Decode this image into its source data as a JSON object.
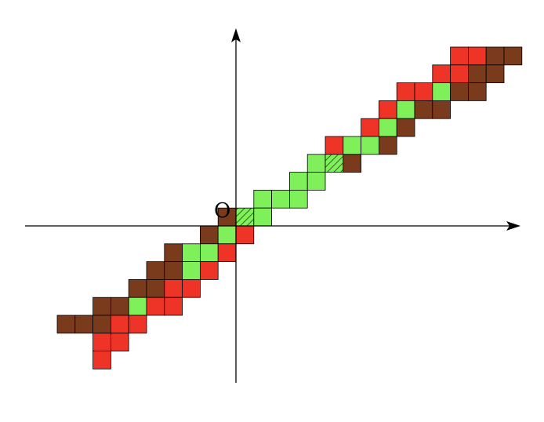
{
  "diagram": {
    "origin_label": "O",
    "colors": {
      "red": "#ee3327",
      "green": "#7ff05a",
      "brown": "#7a3a1c",
      "hatch_fill": "#7ff05a",
      "hatch_stroke": "#000000"
    },
    "cells": [
      {
        "col": 12,
        "row": 9,
        "color": "red"
      },
      {
        "col": 13,
        "row": 9,
        "color": "red"
      },
      {
        "col": 14,
        "row": 9,
        "color": "brown"
      },
      {
        "col": 15,
        "row": 9,
        "color": "brown"
      },
      {
        "col": 11,
        "row": 8,
        "color": "red"
      },
      {
        "col": 12,
        "row": 8,
        "color": "red"
      },
      {
        "col": 13,
        "row": 8,
        "color": "brown"
      },
      {
        "col": 14,
        "row": 8,
        "color": "brown"
      },
      {
        "col": 9,
        "row": 7,
        "color": "red"
      },
      {
        "col": 10,
        "row": 7,
        "color": "red"
      },
      {
        "col": 11,
        "row": 7,
        "color": "green"
      },
      {
        "col": 12,
        "row": 7,
        "color": "brown"
      },
      {
        "col": 13,
        "row": 7,
        "color": "brown"
      },
      {
        "col": 8,
        "row": 6,
        "color": "red"
      },
      {
        "col": 9,
        "row": 6,
        "color": "green"
      },
      {
        "col": 10,
        "row": 6,
        "color": "brown"
      },
      {
        "col": 11,
        "row": 6,
        "color": "brown"
      },
      {
        "col": 7,
        "row": 5,
        "color": "red"
      },
      {
        "col": 8,
        "row": 5,
        "color": "green"
      },
      {
        "col": 9,
        "row": 5,
        "color": "brown"
      },
      {
        "col": 5,
        "row": 4,
        "color": "red"
      },
      {
        "col": 6,
        "row": 4,
        "color": "green"
      },
      {
        "col": 7,
        "row": 4,
        "color": "green"
      },
      {
        "col": 8,
        "row": 4,
        "color": "brown"
      },
      {
        "col": 4,
        "row": 3,
        "color": "green"
      },
      {
        "col": 5,
        "row": 3,
        "color": "hatch"
      },
      {
        "col": 6,
        "row": 3,
        "color": "brown"
      },
      {
        "col": 3,
        "row": 2,
        "color": "green"
      },
      {
        "col": 4,
        "row": 2,
        "color": "green"
      },
      {
        "col": 1,
        "row": 1,
        "color": "green"
      },
      {
        "col": 2,
        "row": 1,
        "color": "green"
      },
      {
        "col": 3,
        "row": 1,
        "color": "green"
      },
      {
        "col": -1,
        "row": 0,
        "color": "brown"
      },
      {
        "col": 0,
        "row": 0,
        "color": "hatch"
      },
      {
        "col": 1,
        "row": 0,
        "color": "green"
      },
      {
        "col": -2,
        "row": -1,
        "color": "brown"
      },
      {
        "col": -1,
        "row": -1,
        "color": "green"
      },
      {
        "col": 0,
        "row": -1,
        "color": "red"
      },
      {
        "col": -4,
        "row": -2,
        "color": "brown"
      },
      {
        "col": -3,
        "row": -2,
        "color": "green"
      },
      {
        "col": -2,
        "row": -2,
        "color": "green"
      },
      {
        "col": -1,
        "row": -2,
        "color": "red"
      },
      {
        "col": -5,
        "row": -3,
        "color": "brown"
      },
      {
        "col": -4,
        "row": -3,
        "color": "brown"
      },
      {
        "col": -3,
        "row": -3,
        "color": "green"
      },
      {
        "col": -2,
        "row": -3,
        "color": "red"
      },
      {
        "col": -6,
        "row": -4,
        "color": "brown"
      },
      {
        "col": -5,
        "row": -4,
        "color": "brown"
      },
      {
        "col": -4,
        "row": -4,
        "color": "red"
      },
      {
        "col": -3,
        "row": -4,
        "color": "red"
      },
      {
        "col": -8,
        "row": -5,
        "color": "brown"
      },
      {
        "col": -7,
        "row": -5,
        "color": "brown"
      },
      {
        "col": -6,
        "row": -5,
        "color": "green"
      },
      {
        "col": -5,
        "row": -5,
        "color": "red"
      },
      {
        "col": -4,
        "row": -5,
        "color": "red"
      },
      {
        "col": -10,
        "row": -6,
        "color": "brown"
      },
      {
        "col": -9,
        "row": -6,
        "color": "brown"
      },
      {
        "col": -8,
        "row": -6,
        "color": "brown"
      },
      {
        "col": -7,
        "row": -6,
        "color": "red"
      },
      {
        "col": -6,
        "row": -6,
        "color": "red"
      },
      {
        "col": -8,
        "row": -7,
        "color": "red"
      },
      {
        "col": -7,
        "row": -7,
        "color": "red"
      },
      {
        "col": -8,
        "row": -8,
        "color": "red"
      }
    ]
  }
}
